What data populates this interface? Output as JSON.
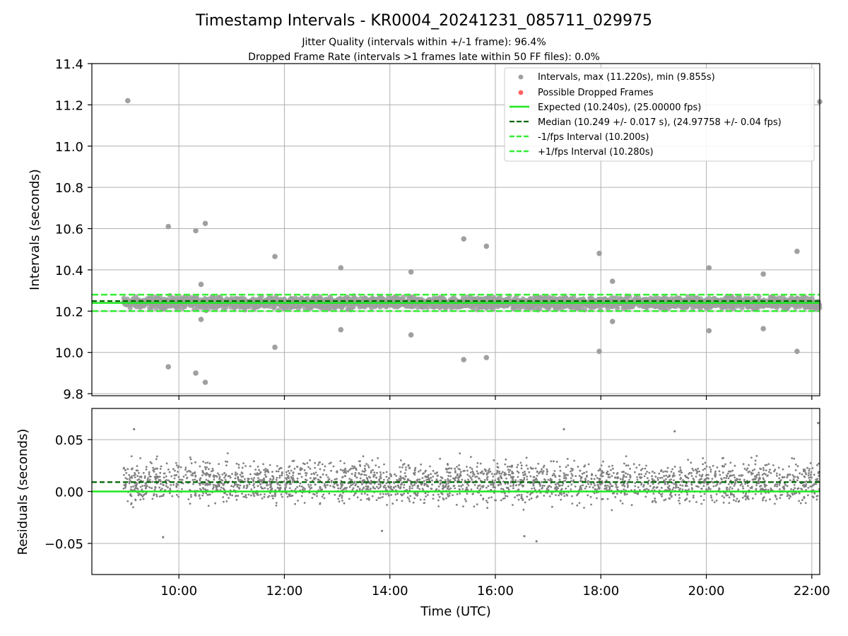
{
  "figure": {
    "title": "Timestamp Intervals - KR0004_20241231_085711_029975",
    "subtitle1": "Jitter Quality (intervals within +/-1 frame): 96.4%",
    "subtitle2": "Dropped Frame Rate (intervals >1 frames late within 50 FF files): 0.0%",
    "xlabel": "Time (UTC)"
  },
  "colors": {
    "points": "#808080",
    "points_top": "#a0a0a0",
    "dropped": "#ff6060",
    "expected": "#1ee81e",
    "median": "#006400",
    "bounds": "#33ee33",
    "grid": "#b0b0b0"
  },
  "chart_data": [
    {
      "type": "scatter",
      "panel": "intervals",
      "ylabel": "Intervals (seconds)",
      "ylim": [
        9.79,
        11.4
      ],
      "xlim_hours": [
        8.35,
        22.15
      ],
      "x_ticks": [
        {
          "v": 10,
          "label": "10:00"
        },
        {
          "v": 12,
          "label": "12:00"
        },
        {
          "v": 14,
          "label": "14:00"
        },
        {
          "v": 16,
          "label": "16:00"
        },
        {
          "v": 18,
          "label": "18:00"
        },
        {
          "v": 20,
          "label": "20:00"
        },
        {
          "v": 22,
          "label": "22:00"
        }
      ],
      "y_ticks": [
        {
          "v": 9.8,
          "label": "9.8"
        },
        {
          "v": 10.0,
          "label": "10.0"
        },
        {
          "v": 10.2,
          "label": "10.2"
        },
        {
          "v": 10.4,
          "label": "10.4"
        },
        {
          "v": 10.6,
          "label": "10.6"
        },
        {
          "v": 10.8,
          "label": "10.8"
        },
        {
          "v": 11.0,
          "label": "11.0"
        },
        {
          "v": 11.2,
          "label": "11.2"
        },
        {
          "v": 11.4,
          "label": "11.4"
        }
      ],
      "grid": true,
      "legend_position": "top-right",
      "legend": [
        "Intervals, max (11.220s), min (9.855s)",
        "Possible Dropped Frames",
        "Expected (10.240s), (25.00000 fps)",
        "Median (10.249 +/- 0.017 s), (24.97758 +/- 0.04 fps)",
        "-1/fps Interval (10.200s)",
        "+1/fps Interval (10.280s)"
      ],
      "dense_band": {
        "x_start_hours": 8.95,
        "x_end_hours": 22.15,
        "center": 10.24,
        "spread": 0.04
      },
      "expected": 10.24,
      "median": 10.249,
      "minus_1fps": 10.2,
      "plus_1fps": 10.28,
      "outliers": [
        {
          "x": 9.03,
          "y": 11.22
        },
        {
          "x": 9.8,
          "y": 10.61
        },
        {
          "x": 9.8,
          "y": 9.93
        },
        {
          "x": 10.32,
          "y": 10.59
        },
        {
          "x": 10.32,
          "y": 9.9
        },
        {
          "x": 10.42,
          "y": 10.33
        },
        {
          "x": 10.42,
          "y": 10.16
        },
        {
          "x": 10.5,
          "y": 10.625
        },
        {
          "x": 10.5,
          "y": 9.855
        },
        {
          "x": 11.82,
          "y": 10.465
        },
        {
          "x": 11.82,
          "y": 10.025
        },
        {
          "x": 13.07,
          "y": 10.41
        },
        {
          "x": 13.07,
          "y": 10.11
        },
        {
          "x": 14.4,
          "y": 10.39
        },
        {
          "x": 14.4,
          "y": 10.085
        },
        {
          "x": 15.4,
          "y": 10.55
        },
        {
          "x": 15.4,
          "y": 9.965
        },
        {
          "x": 15.83,
          "y": 10.515
        },
        {
          "x": 15.83,
          "y": 9.975
        },
        {
          "x": 17.97,
          "y": 10.48
        },
        {
          "x": 17.97,
          "y": 10.005
        },
        {
          "x": 18.22,
          "y": 10.345
        },
        {
          "x": 18.22,
          "y": 10.15
        },
        {
          "x": 20.05,
          "y": 10.41
        },
        {
          "x": 20.05,
          "y": 10.105
        },
        {
          "x": 21.08,
          "y": 10.38
        },
        {
          "x": 21.08,
          "y": 10.115
        },
        {
          "x": 21.72,
          "y": 10.49
        },
        {
          "x": 21.72,
          "y": 10.005
        },
        {
          "x": 22.15,
          "y": 11.215
        }
      ]
    },
    {
      "type": "scatter",
      "panel": "residuals",
      "ylabel": "Residuals (seconds)",
      "ylim": [
        -0.08,
        0.08
      ],
      "xlim_hours": [
        8.35,
        22.15
      ],
      "y_ticks": [
        {
          "v": -0.05,
          "label": "−0.05"
        },
        {
          "v": 0.0,
          "label": "0.00"
        },
        {
          "v": 0.05,
          "label": "0.05"
        }
      ],
      "grid": true,
      "zero_line": 0.0,
      "median_residual": 0.009,
      "dense_band": {
        "x_start_hours": 8.95,
        "x_end_hours": 22.15,
        "center": 0.009,
        "spread": 0.025
      },
      "notable_points": [
        {
          "x": 9.7,
          "y": -0.044
        },
        {
          "x": 9.15,
          "y": 0.06
        },
        {
          "x": 16.55,
          "y": -0.043
        },
        {
          "x": 16.78,
          "y": -0.048
        },
        {
          "x": 17.3,
          "y": 0.06
        },
        {
          "x": 19.4,
          "y": 0.058
        },
        {
          "x": 22.12,
          "y": 0.066
        },
        {
          "x": 13.85,
          "y": -0.038
        }
      ]
    }
  ]
}
